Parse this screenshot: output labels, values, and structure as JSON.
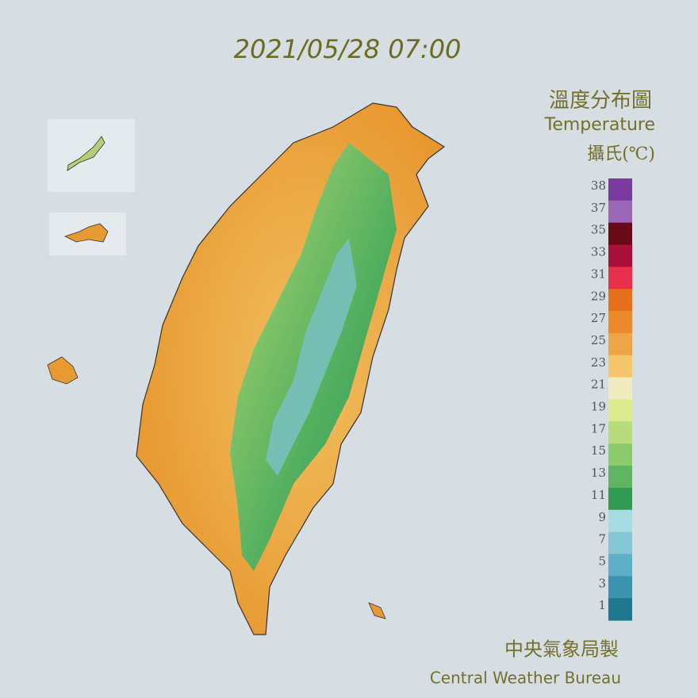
{
  "header": {
    "timestamp": "2021/05/28 07:00",
    "title_zh": "溫度分布圖",
    "title_en": "Temperature",
    "unit": "攝氏(℃)"
  },
  "legend": {
    "labels": [
      38,
      37,
      35,
      33,
      31,
      29,
      27,
      25,
      23,
      21,
      19,
      17,
      15,
      13,
      11,
      9,
      7,
      5,
      3,
      1
    ],
    "colors": [
      "#7b3a9e",
      "#9a68b6",
      "#6a0a16",
      "#a8103a",
      "#e8304e",
      "#e8701c",
      "#ec8a2a",
      "#f0a448",
      "#f6c66a",
      "#f0ecc0",
      "#dceb8e",
      "#b8dc7c",
      "#8ccb6c",
      "#5fb562",
      "#2f9a52",
      "#a8dce4",
      "#84c8d8",
      "#5eb0c8",
      "#3a94b0",
      "#1e7890"
    ]
  },
  "footer": {
    "agency_zh": "中央氣象局製",
    "agency_en": "Central Weather Bureau"
  }
}
